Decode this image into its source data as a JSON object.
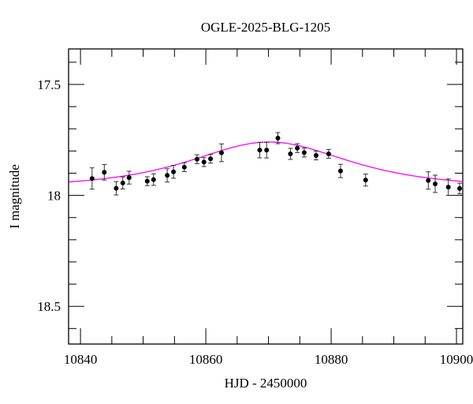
{
  "chart_data": {
    "type": "scatter",
    "title": "OGLE-2025-BLG-1205",
    "xlabel": "HJD - 2450000",
    "ylabel": "I magnitude",
    "xlim": [
      10838.1,
      10901.0
    ],
    "ylim": [
      18.67,
      17.34
    ],
    "y_inverted": true,
    "x_ticks": [
      10840,
      10860,
      10880,
      10900
    ],
    "x_tick_labels": [
      "10840",
      "10860",
      "10880",
      "10900"
    ],
    "x_minor_step": 5,
    "y_ticks": [
      17.5,
      18,
      18.5
    ],
    "y_tick_labels": [
      "17.5",
      "18",
      "18.5"
    ],
    "y_minor_step": 0.1,
    "grid": false,
    "colors": {
      "points": "#000000",
      "errorbars": "#333333",
      "model": "#ff00ff"
    },
    "points": [
      {
        "x": 10841.85,
        "y": 17.924,
        "err": 0.048
      },
      {
        "x": 10843.8,
        "y": 17.896,
        "err": 0.035
      },
      {
        "x": 10845.7,
        "y": 17.968,
        "err": 0.03
      },
      {
        "x": 10846.75,
        "y": 17.944,
        "err": 0.027
      },
      {
        "x": 10847.76,
        "y": 17.92,
        "err": 0.029
      },
      {
        "x": 10850.65,
        "y": 17.936,
        "err": 0.02
      },
      {
        "x": 10851.66,
        "y": 17.929,
        "err": 0.026
      },
      {
        "x": 10853.84,
        "y": 17.91,
        "err": 0.03
      },
      {
        "x": 10854.84,
        "y": 17.894,
        "err": 0.029
      },
      {
        "x": 10856.57,
        "y": 17.873,
        "err": 0.02
      },
      {
        "x": 10858.6,
        "y": 17.837,
        "err": 0.02
      },
      {
        "x": 10859.7,
        "y": 17.85,
        "err": 0.02
      },
      {
        "x": 10860.75,
        "y": 17.835,
        "err": 0.02
      },
      {
        "x": 10862.5,
        "y": 17.808,
        "err": 0.04
      },
      {
        "x": 10868.6,
        "y": 17.796,
        "err": 0.035
      },
      {
        "x": 10869.7,
        "y": 17.796,
        "err": 0.035
      },
      {
        "x": 10871.5,
        "y": 17.742,
        "err": 0.025
      },
      {
        "x": 10873.5,
        "y": 17.813,
        "err": 0.025
      },
      {
        "x": 10874.6,
        "y": 17.787,
        "err": 0.02
      },
      {
        "x": 10875.7,
        "y": 17.807,
        "err": 0.02
      },
      {
        "x": 10877.6,
        "y": 17.82,
        "err": 0.02
      },
      {
        "x": 10879.6,
        "y": 17.813,
        "err": 0.02
      },
      {
        "x": 10881.5,
        "y": 17.89,
        "err": 0.03
      },
      {
        "x": 10885.5,
        "y": 17.931,
        "err": 0.027
      },
      {
        "x": 10895.5,
        "y": 17.933,
        "err": 0.039
      },
      {
        "x": 10896.6,
        "y": 17.948,
        "err": 0.039
      },
      {
        "x": 10898.7,
        "y": 17.963,
        "err": 0.037
      },
      {
        "x": 10900.5,
        "y": 17.969,
        "err": 0.024
      }
    ],
    "model": {
      "kind": "point-lens",
      "t0": 10870.1,
      "u0": 1.25,
      "tE": 13.3,
      "baseline_mag": 17.965
    }
  }
}
